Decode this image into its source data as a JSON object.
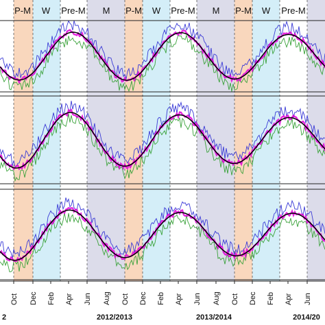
{
  "chart_data": {
    "type": "line",
    "colors": {
      "monsoon": "#dcdcea",
      "post_monsoon": "#f9d7bd",
      "winter": "#d4eef8",
      "pre_monsoon": "#ffffff",
      "blue_series": "#3a3ad6",
      "magenta_series": "#e000d8",
      "green_series": "#3aa23a",
      "black_series": "#000000"
    },
    "season_labels": [
      "P-M",
      "W",
      "Pre-M",
      "M",
      "P-M",
      "W",
      "Pre-M",
      "M",
      "P-M",
      "W",
      "Pre-M"
    ],
    "month_ticks": [
      "Oct",
      "Dec",
      "Feb",
      "Apr",
      "Jun",
      "Aug",
      "Oct",
      "Dec",
      "Feb",
      "Apr",
      "Jun",
      "Aug",
      "Oct",
      "Dec",
      "Feb",
      "Apr",
      "Jun"
    ],
    "year_labels": [
      "2",
      "2012/2013",
      "2013/2014",
      "2014/20"
    ],
    "grid": true,
    "panels": 3
  }
}
